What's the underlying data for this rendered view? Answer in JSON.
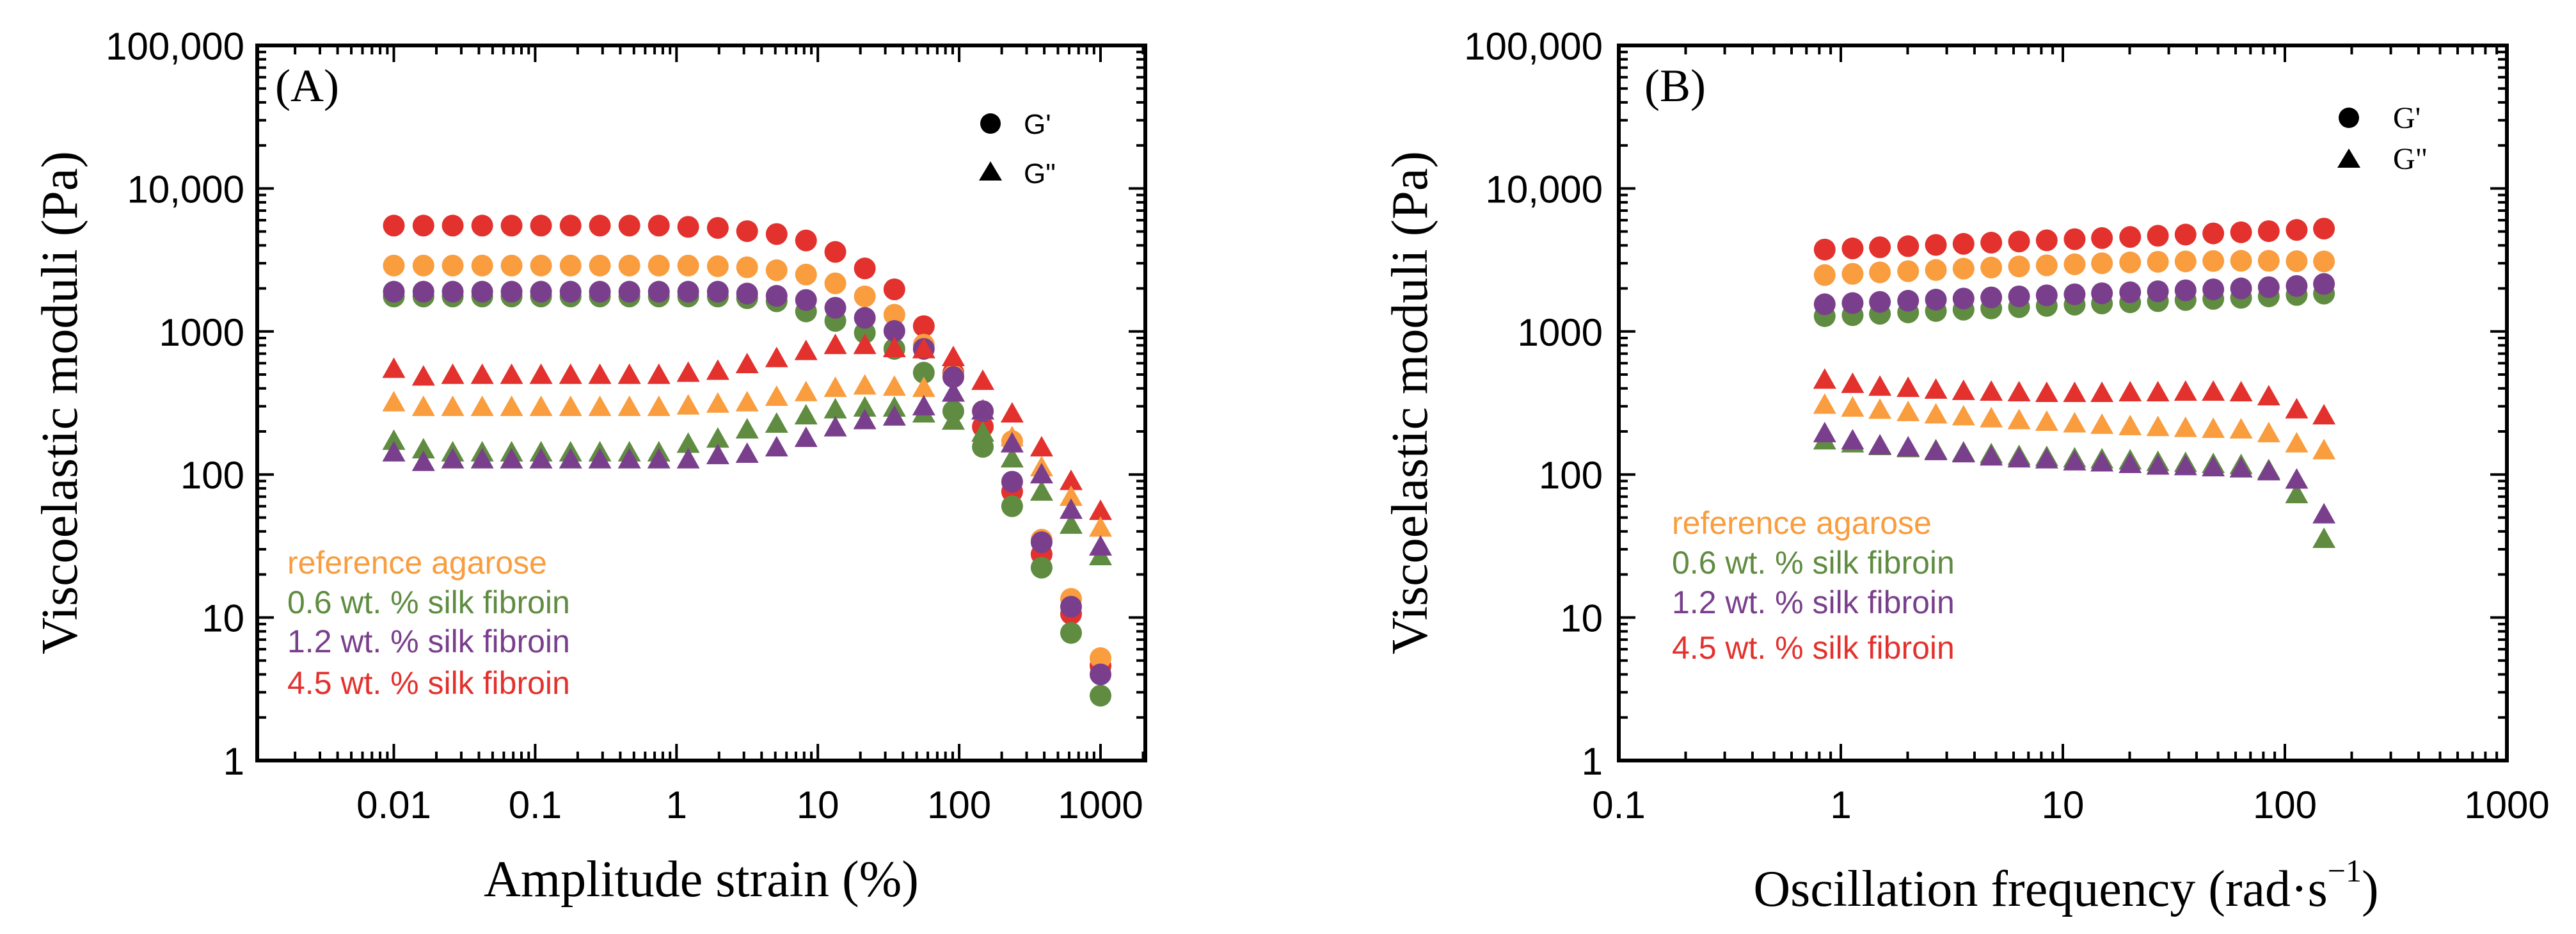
{
  "colors": {
    "reference_agarose": "#F99D3E",
    "silk_0_6": "#5F8C41",
    "silk_1_2": "#7A3F8C",
    "silk_4_5": "#E3312D",
    "axis": "#000000"
  },
  "chart_data": [
    {
      "type": "scatter",
      "panel_label": "(A)",
      "xlabel": "Amplitude strain (%)",
      "ylabel": "Viscoelastic moduli (Pa)",
      "xscale": "log",
      "yscale": "log",
      "xlim": [
        0.00108,
        2075
      ],
      "ylim": [
        1,
        100000
      ],
      "xticks": [
        0.01,
        0.1,
        1,
        10,
        100,
        1000
      ],
      "xtick_labels": [
        "0.01",
        "0.1",
        "1",
        "10",
        "100",
        "1000"
      ],
      "yticks": [
        1,
        10,
        100,
        1000,
        10000,
        100000
      ],
      "ytick_labels": [
        "1",
        "10",
        "100",
        "1000",
        "10,000",
        "100,000"
      ],
      "marker_legend": {
        "placement": "top-right",
        "items": [
          {
            "marker": "circle",
            "label": "G'"
          },
          {
            "marker": "triangle",
            "label": "G\""
          }
        ]
      },
      "sample_legend": {
        "placement": "bottom-left",
        "items": [
          "reference agarose",
          "0.6 wt. % silk fibroin",
          "1.2 wt. % silk fibroin",
          "4.5 wt. % silk fibroin"
        ]
      },
      "x": [
        0.01,
        0.0162,
        0.0261,
        0.0422,
        0.0681,
        0.11,
        0.178,
        0.287,
        0.464,
        0.75,
        1.21,
        1.96,
        3.16,
        5.11,
        8.25,
        13.3,
        21.5,
        34.8,
        56.2,
        90.9,
        147,
        237,
        383,
        619,
        1000
      ],
      "series": [
        {
          "name": "4.5 wt. % silk fibroin G'",
          "sample": "silk_4_5",
          "marker": "circle",
          "values": [
            5500,
            5500,
            5500,
            5500,
            5500,
            5500,
            5500,
            5500,
            5500,
            5500,
            5390,
            5300,
            5030,
            4800,
            4330,
            3600,
            2760,
            1970,
            1090,
            515,
            216,
            76,
            27.7,
            10.6,
            4.6
          ]
        },
        {
          "name": "reference agarose G'",
          "sample": "reference_agarose",
          "marker": "circle",
          "values": [
            2890,
            2890,
            2890,
            2890,
            2890,
            2890,
            2890,
            2890,
            2890,
            2890,
            2890,
            2860,
            2810,
            2680,
            2500,
            2170,
            1760,
            1310,
            809,
            491,
            277,
            171,
            35,
            13.5,
            5.2
          ]
        },
        {
          "name": "0.6 wt. % silk fibroin G'",
          "sample": "silk_0_6",
          "marker": "circle",
          "values": [
            1757,
            1757,
            1757,
            1757,
            1757,
            1757,
            1757,
            1757,
            1757,
            1757,
            1757,
            1757,
            1710,
            1626,
            1381,
            1186,
            979,
            756,
            515,
            277,
            156,
            60,
            22.3,
            7.8,
            2.84
          ]
        },
        {
          "name": "1.2 wt. % silk fibroin G'",
          "sample": "silk_1_2",
          "marker": "circle",
          "values": [
            1897,
            1897,
            1897,
            1897,
            1897,
            1897,
            1897,
            1897,
            1897,
            1897,
            1897,
            1897,
            1842,
            1774,
            1660,
            1465,
            1245,
            1008,
            756,
            480,
            277,
            89,
            33.6,
            11.9,
            4.0
          ]
        },
        {
          "name": "4.5 wt. % silk fibroin G\"",
          "sample": "silk_4_5",
          "marker": "triangle",
          "values": [
            541,
            478,
            491,
            491,
            491,
            491,
            491,
            491,
            491,
            491,
            508,
            525,
            584,
            643,
            721,
            794,
            794,
            756,
            742,
            654,
            446,
            264,
            153,
            89,
            55
          ]
        },
        {
          "name": "reference agarose G\"",
          "sample": "reference_agarose",
          "marker": "triangle",
          "values": [
            316,
            293,
            293,
            293,
            293,
            293,
            293,
            293,
            293,
            293,
            300,
            309,
            316,
            345,
            372,
            398,
            414,
            406,
            398,
            369,
            277,
            180,
            111,
            69,
            42
          ]
        },
        {
          "name": "0.6 wt. % silk fibroin G\"",
          "sample": "silk_0_6",
          "marker": "triangle",
          "values": [
            170,
            148,
            141,
            141,
            141,
            141,
            141,
            141,
            141,
            141,
            162,
            176,
            204,
            224,
            256,
            282,
            290,
            290,
            264,
            235,
            194,
            128,
            75,
            44,
            26.5
          ]
        },
        {
          "name": "1.2 wt. % silk fibroin G\"",
          "sample": "silk_1_2",
          "marker": "triangle",
          "values": [
            141,
            121,
            126,
            126,
            126,
            126,
            126,
            126,
            126,
            126,
            126,
            135,
            138,
            153,
            178,
            211,
            237,
            251,
            296,
            369,
            277,
            163,
            99,
            56,
            31
          ]
        }
      ]
    },
    {
      "type": "scatter",
      "panel_label": "(B)",
      "xlabel": "Oscillation frequency (rad·s",
      "xlabel_superscript": "−1",
      "xlabel_close": ")",
      "ylabel": "Viscoelastic moduli (Pa)",
      "xscale": "log",
      "yscale": "log",
      "xlim": [
        0.1,
        1000
      ],
      "ylim": [
        1,
        100000
      ],
      "xticks": [
        0.1,
        1,
        10,
        100,
        1000
      ],
      "xtick_labels": [
        "0.1",
        "1",
        "10",
        "100",
        "1000"
      ],
      "yticks": [
        1,
        10,
        100,
        1000,
        10000,
        100000
      ],
      "ytick_labels": [
        "1",
        "10",
        "100",
        "1000",
        "10,000",
        "100,000"
      ],
      "marker_legend": {
        "placement": "top-right",
        "items": [
          {
            "marker": "circle",
            "label": "G'"
          },
          {
            "marker": "triangle",
            "label": "G\""
          }
        ]
      },
      "sample_legend": {
        "placement": "left-middle",
        "items": [
          "reference agarose",
          "0.6 wt. % silk fibroin",
          "1.2 wt. % silk fibroin",
          "4.5 wt. % silk fibroin"
        ]
      },
      "x": [
        0.846,
        1.13,
        1.5,
        2.01,
        2.68,
        3.57,
        4.76,
        6.35,
        8.46,
        11.3,
        15.0,
        20.1,
        26.8,
        35.7,
        47.6,
        63.5,
        84.6,
        113,
        150
      ],
      "series": [
        {
          "name": "4.5 wt. % silk fibroin G'",
          "sample": "silk_4_5",
          "marker": "circle",
          "values": [
            3740,
            3810,
            3880,
            3950,
            4030,
            4100,
            4180,
            4260,
            4340,
            4420,
            4500,
            4580,
            4670,
            4760,
            4850,
            4940,
            5030,
            5130,
            5240
          ]
        },
        {
          "name": "reference agarose G'",
          "sample": "reference_agarose",
          "marker": "circle",
          "values": [
            2480,
            2530,
            2590,
            2640,
            2690,
            2750,
            2800,
            2850,
            2900,
            2950,
            3000,
            3040,
            3070,
            3090,
            3110,
            3120,
            3120,
            3100,
            3090
          ]
        },
        {
          "name": "0.6 wt. % silk fibroin G'",
          "sample": "silk_0_6",
          "marker": "circle",
          "values": [
            1280,
            1300,
            1330,
            1360,
            1390,
            1420,
            1450,
            1480,
            1510,
            1540,
            1570,
            1600,
            1630,
            1660,
            1690,
            1720,
            1760,
            1800,
            1840
          ]
        },
        {
          "name": "1.2 wt. % silk fibroin G'",
          "sample": "silk_1_2",
          "marker": "circle",
          "values": [
            1550,
            1580,
            1610,
            1640,
            1670,
            1700,
            1730,
            1760,
            1790,
            1820,
            1850,
            1880,
            1910,
            1940,
            1970,
            2000,
            2040,
            2080,
            2150
          ]
        },
        {
          "name": "4.5 wt. % silk fibroin G\"",
          "sample": "silk_4_5",
          "marker": "triangle",
          "values": [
            455,
            425,
            406,
            398,
            387,
            379,
            375,
            371,
            367,
            367,
            367,
            371,
            371,
            375,
            375,
            371,
            348,
            282,
            256
          ]
        },
        {
          "name": "reference agarose G\"",
          "sample": "reference_agarose",
          "marker": "triangle",
          "values": [
            304,
            290,
            280,
            270,
            260,
            252,
            244,
            237,
            231,
            225,
            220,
            215,
            212,
            209,
            206,
            204,
            192,
            163,
            146
          ]
        },
        {
          "name": "0.6 wt. % silk fibroin G\"",
          "sample": "silk_0_6",
          "marker": "triangle",
          "values": [
            171,
            163,
            156,
            151,
            146,
            141,
            137,
            133,
            131,
            128,
            126,
            124,
            121,
            119,
            117,
            115,
            106,
            72,
            35
          ]
        },
        {
          "name": "1.2 wt. % silk fibroin G\"",
          "sample": "silk_1_2",
          "marker": "triangle",
          "values": [
            192,
            171,
            158,
            153,
            144,
            139,
            132,
            128,
            126,
            122,
            120,
            117,
            114,
            113,
            111,
            109,
            104,
            91,
            52
          ]
        }
      ]
    }
  ]
}
